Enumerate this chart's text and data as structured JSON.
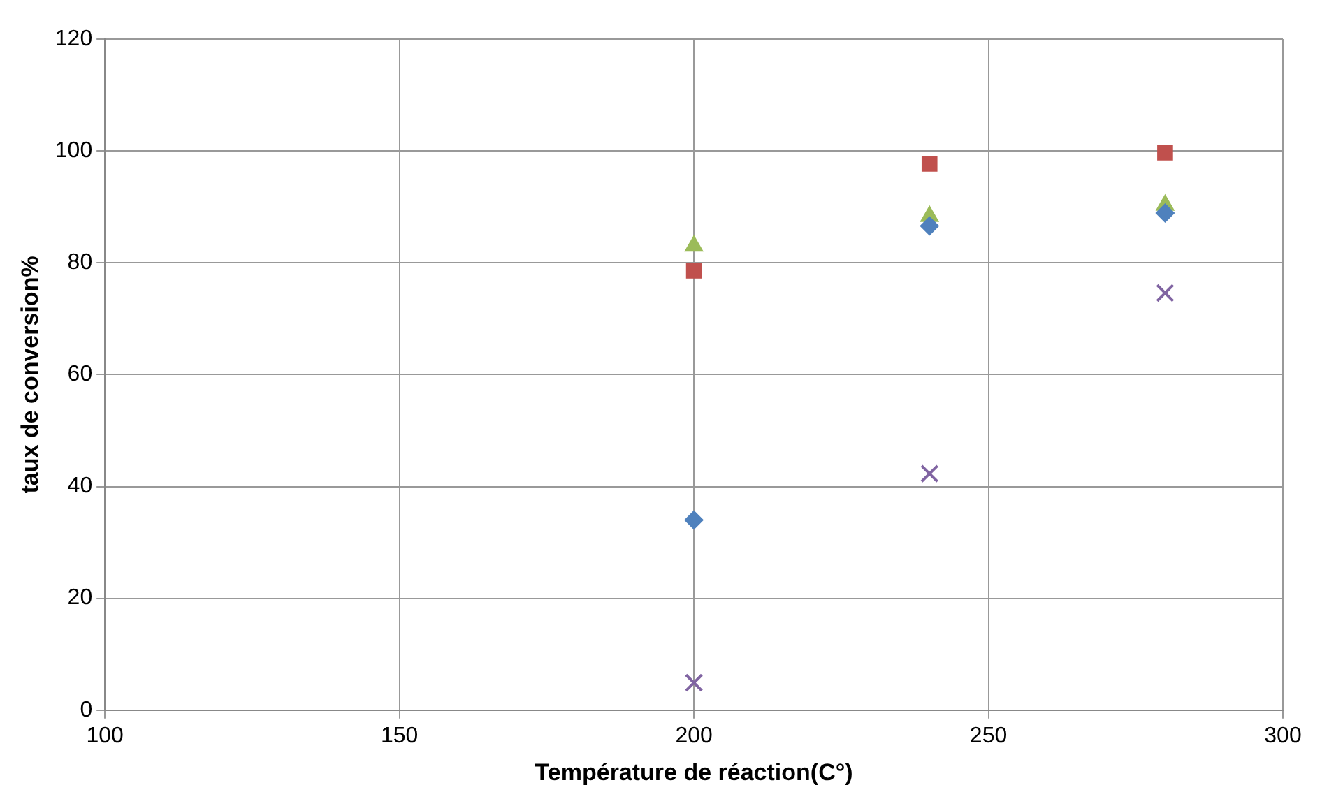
{
  "chart_data": {
    "type": "scatter",
    "xlabel": "Température de réaction(C°)",
    "ylabel": "taux de conversion%",
    "x": [
      200,
      240,
      280
    ],
    "series": [
      {
        "color": "#4f81bd",
        "marker": "diamond",
        "values": [
          34,
          86.6,
          88.9
        ]
      },
      {
        "color": "#c0504d",
        "marker": "square",
        "values": [
          78.6,
          97.7,
          99.7
        ]
      },
      {
        "color": "#9bbb59",
        "marker": "triangle",
        "values": [
          83,
          88.3,
          90.3
        ]
      },
      {
        "color": "#8064a2",
        "marker": "cross",
        "values": [
          4.9,
          42.3,
          74.6
        ]
      }
    ],
    "xlim": [
      100,
      300
    ],
    "xticks": [
      100,
      150,
      200,
      250,
      300
    ],
    "ylim": [
      0,
      120
    ],
    "yticks": [
      0,
      20,
      40,
      60,
      80,
      100,
      120
    ],
    "grid": true
  }
}
